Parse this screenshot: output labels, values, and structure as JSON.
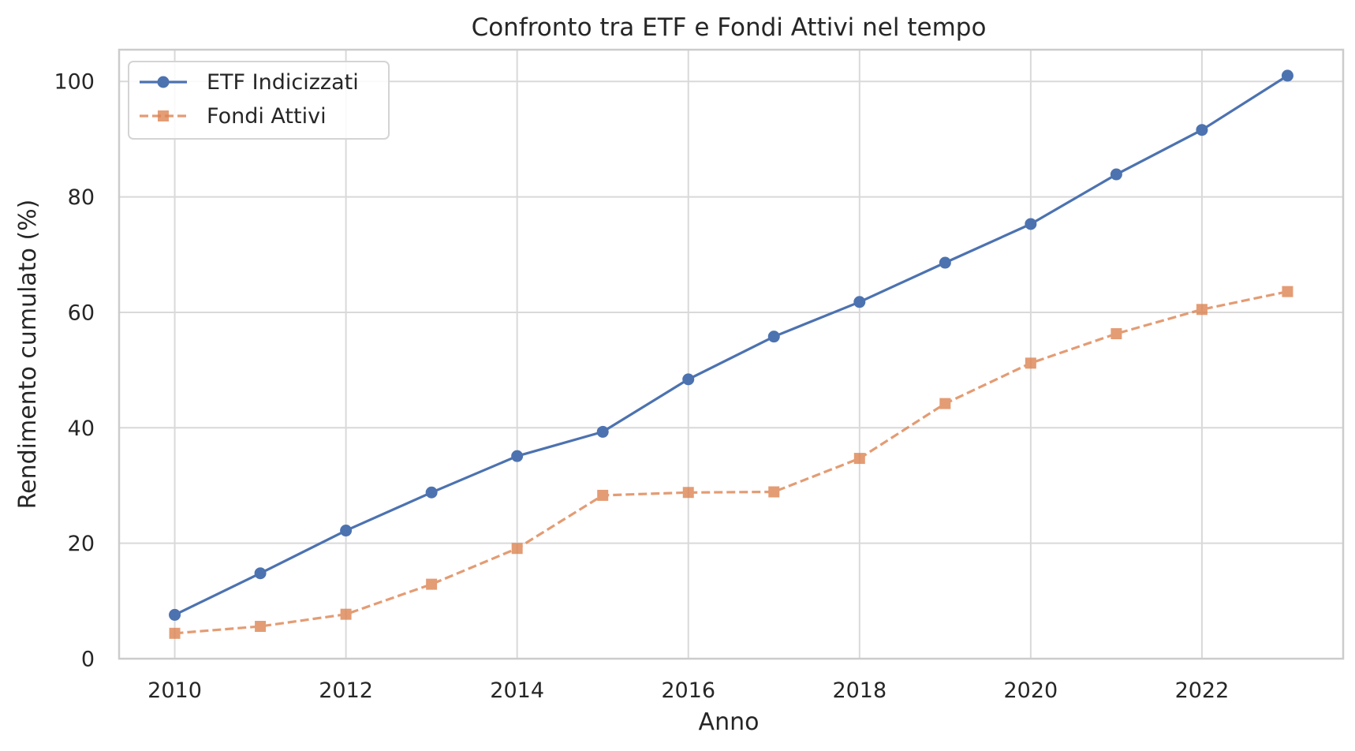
{
  "chart_data": {
    "type": "line",
    "title": "Confronto tra ETF e Fondi Attivi nel tempo",
    "xlabel": "Anno",
    "ylabel": "Rendimento cumulato (%)",
    "x": [
      2010,
      2011,
      2012,
      2013,
      2014,
      2015,
      2016,
      2017,
      2018,
      2019,
      2020,
      2021,
      2022,
      2023
    ],
    "xlim": [
      2009.35,
      2023.65
    ],
    "ylim": [
      0,
      105.5
    ],
    "xticks": [
      2010,
      2012,
      2014,
      2016,
      2018,
      2020,
      2022
    ],
    "yticks": [
      0,
      20,
      40,
      60,
      80,
      100
    ],
    "grid": true,
    "legend_position": "upper-left",
    "series": [
      {
        "name": "ETF Indicizzati",
        "color": "#4c72b0",
        "marker": "circle",
        "line_style": "solid",
        "values": [
          7.6,
          14.8,
          22.2,
          28.8,
          35.1,
          39.3,
          48.4,
          55.8,
          61.8,
          68.6,
          75.3,
          83.9,
          91.6,
          101.0
        ]
      },
      {
        "name": "Fondi Attivi",
        "color": "#dd8452",
        "marker": "square",
        "line_style": "dashed",
        "values": [
          4.4,
          5.6,
          7.7,
          12.9,
          19.1,
          28.3,
          28.8,
          28.9,
          34.7,
          44.2,
          51.2,
          56.3,
          60.5,
          63.6
        ]
      }
    ]
  }
}
